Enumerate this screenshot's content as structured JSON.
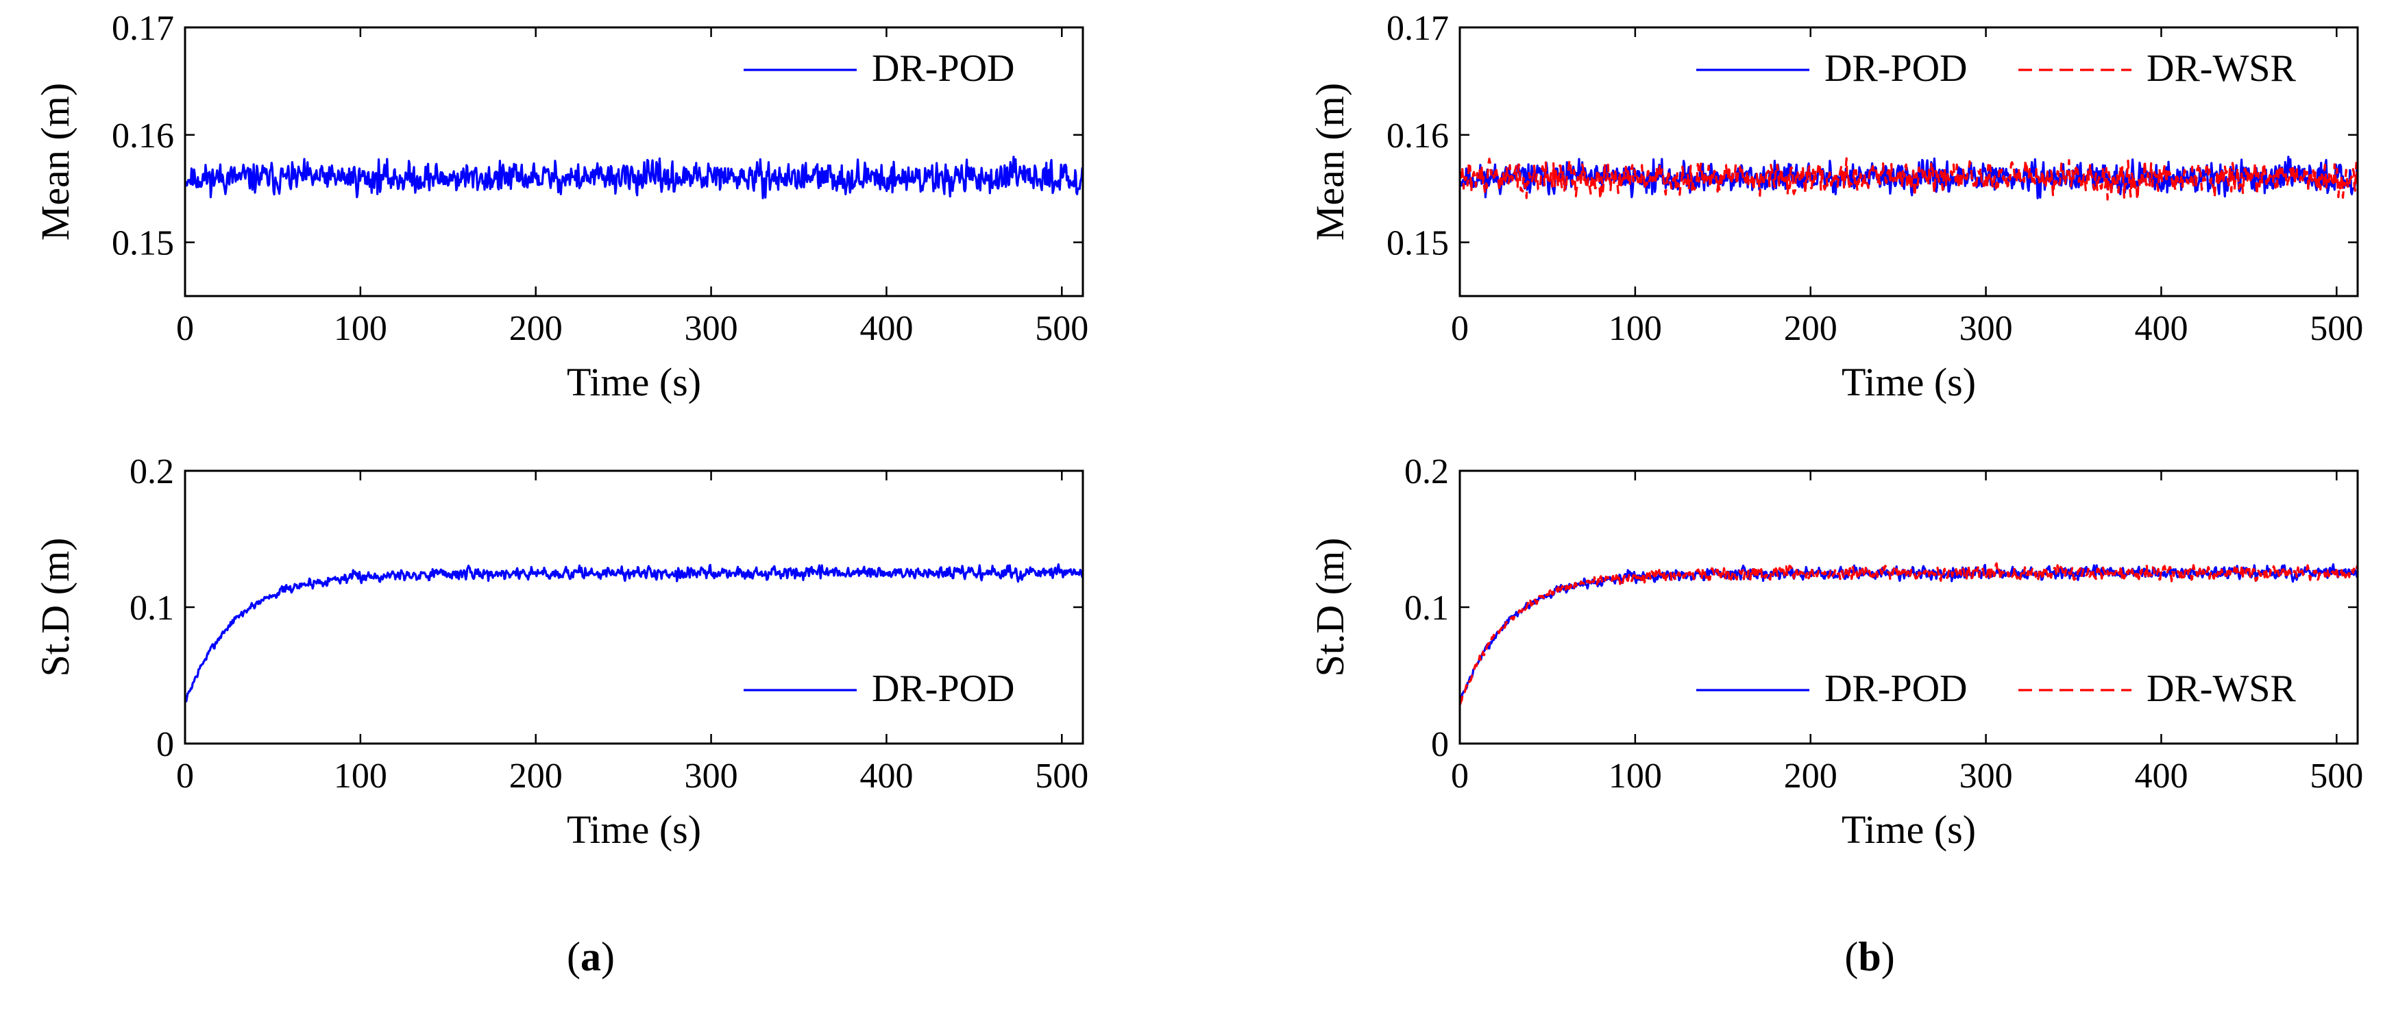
{
  "colors": {
    "pod": "#0000ff",
    "wsr": "#ff0000",
    "axis": "#000000"
  },
  "captions": {
    "a": "a",
    "b": "b"
  },
  "chart_data": [
    {
      "id": "a-top",
      "type": "line",
      "xlabel": "Time (s)",
      "ylabel": "Mean (m)",
      "xlim": [
        0,
        512
      ],
      "ylim": [
        0.145,
        0.17
      ],
      "xticks": [
        0,
        100,
        200,
        300,
        400,
        500
      ],
      "yticks": [
        0.15,
        0.16,
        0.17
      ],
      "ytick_labels": [
        "0.15",
        "0.16",
        "0.17"
      ],
      "legend_position": "top-right",
      "series": [
        {
          "name": "DR-POD",
          "color": "#0000ff",
          "dash": "solid",
          "kind": "mean",
          "base": 0.156,
          "amp": 0.0017,
          "seed": 11
        }
      ]
    },
    {
      "id": "b-top",
      "type": "line",
      "xlabel": "Time (s)",
      "ylabel": "Mean (m)",
      "xlim": [
        0,
        512
      ],
      "ylim": [
        0.145,
        0.17
      ],
      "xticks": [
        0,
        100,
        200,
        300,
        400,
        500
      ],
      "yticks": [
        0.15,
        0.16,
        0.17
      ],
      "ytick_labels": [
        "0.15",
        "0.16",
        "0.17"
      ],
      "legend_position": "top-right",
      "series": [
        {
          "name": "DR-POD",
          "color": "#0000ff",
          "dash": "solid",
          "kind": "mean",
          "base": 0.156,
          "amp": 0.0017,
          "seed": 11
        },
        {
          "name": "DR-WSR",
          "color": "#ff0000",
          "dash": "dashed",
          "kind": "mean",
          "base": 0.156,
          "amp": 0.0017,
          "seed": 29
        }
      ]
    },
    {
      "id": "a-bottom",
      "type": "line",
      "xlabel": "Time (s)",
      "ylabel": "St.D (m)",
      "xlim": [
        0,
        512
      ],
      "ylim": [
        0,
        0.2
      ],
      "xticks": [
        0,
        100,
        200,
        300,
        400,
        500
      ],
      "yticks": [
        0,
        0.1,
        0.2
      ],
      "ytick_labels": [
        "0",
        "0.1",
        "0.2"
      ],
      "legend_position": "bottom-right",
      "series": [
        {
          "name": "DR-POD",
          "color": "#0000ff",
          "dash": "solid",
          "kind": "std",
          "start": 0.03,
          "plateau": 0.125,
          "tau": 28,
          "amp": 0.0048,
          "seed": 7
        }
      ]
    },
    {
      "id": "b-bottom",
      "type": "line",
      "xlabel": "Time (s)",
      "ylabel": "St.D (m)",
      "xlim": [
        0,
        512
      ],
      "ylim": [
        0,
        0.2
      ],
      "xticks": [
        0,
        100,
        200,
        300,
        400,
        500
      ],
      "yticks": [
        0,
        0.1,
        0.2
      ],
      "ytick_labels": [
        "0",
        "0.1",
        "0.2"
      ],
      "legend_position": "bottom-right",
      "series": [
        {
          "name": "DR-POD",
          "color": "#0000ff",
          "dash": "solid",
          "kind": "std",
          "start": 0.03,
          "plateau": 0.125,
          "tau": 28,
          "amp": 0.0048,
          "seed": 7
        },
        {
          "name": "DR-WSR",
          "color": "#ff0000",
          "dash": "dashed",
          "kind": "std",
          "start": 0.03,
          "plateau": 0.125,
          "tau": 28,
          "amp": 0.0048,
          "seed": 43
        }
      ]
    }
  ]
}
